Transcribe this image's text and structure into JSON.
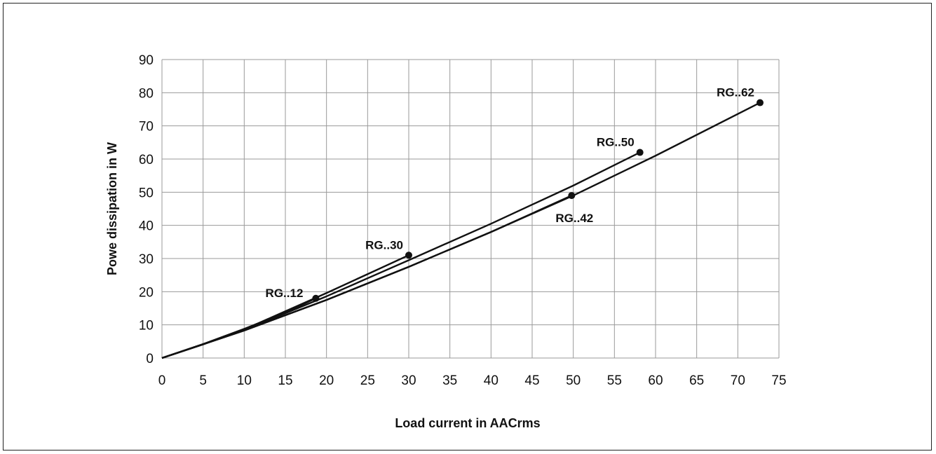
{
  "chart_data": {
    "type": "line",
    "title": "",
    "xlabel": "Load current in AACrms",
    "ylabel": "Powe dissipation in W",
    "xlim": [
      0,
      75
    ],
    "ylim": [
      0,
      90
    ],
    "x_ticks": [
      0,
      5,
      10,
      15,
      20,
      25,
      30,
      35,
      40,
      45,
      50,
      55,
      60,
      65,
      70,
      75
    ],
    "y_ticks": [
      0,
      10,
      20,
      30,
      40,
      50,
      60,
      70,
      80,
      90
    ],
    "grid": true,
    "legend": "none",
    "series": [
      {
        "name": "RG..12",
        "x": [
          0,
          5,
          10,
          15,
          18.7
        ],
        "y": [
          0,
          4.2,
          8.8,
          13.7,
          18
        ]
      },
      {
        "name": "RG..30",
        "x": [
          0,
          5,
          10,
          20,
          30
        ],
        "y": [
          0,
          4.1,
          8.6,
          19.6,
          31
        ]
      },
      {
        "name": "RG..42",
        "x": [
          0,
          10,
          20,
          30,
          40,
          49.8
        ],
        "y": [
          0,
          8.3,
          17.5,
          27.5,
          38,
          49
        ]
      },
      {
        "name": "RG..50",
        "x": [
          0,
          10,
          20,
          30,
          40,
          50,
          58.1
        ],
        "y": [
          0,
          8.4,
          18.6,
          29.5,
          40.5,
          52,
          62
        ]
      },
      {
        "name": "RG..62",
        "x": [
          0,
          10,
          20,
          30,
          40,
          50,
          60,
          72.7
        ],
        "y": [
          0,
          8.3,
          17.5,
          27.5,
          38,
          49,
          61,
          77
        ]
      }
    ],
    "points": [
      {
        "label": "RG..12",
        "x": 18.7,
        "y": 18,
        "label_pos": "left"
      },
      {
        "label": "RG..30",
        "x": 30,
        "y": 31,
        "label_pos": "upper-left"
      },
      {
        "label": "RG..42",
        "x": 49.8,
        "y": 49,
        "label_pos": "below"
      },
      {
        "label": "RG..50",
        "x": 58.1,
        "y": 62,
        "label_pos": "upper-left"
      },
      {
        "label": "RG..62",
        "x": 72.7,
        "y": 77,
        "label_pos": "upper-left"
      }
    ]
  }
}
